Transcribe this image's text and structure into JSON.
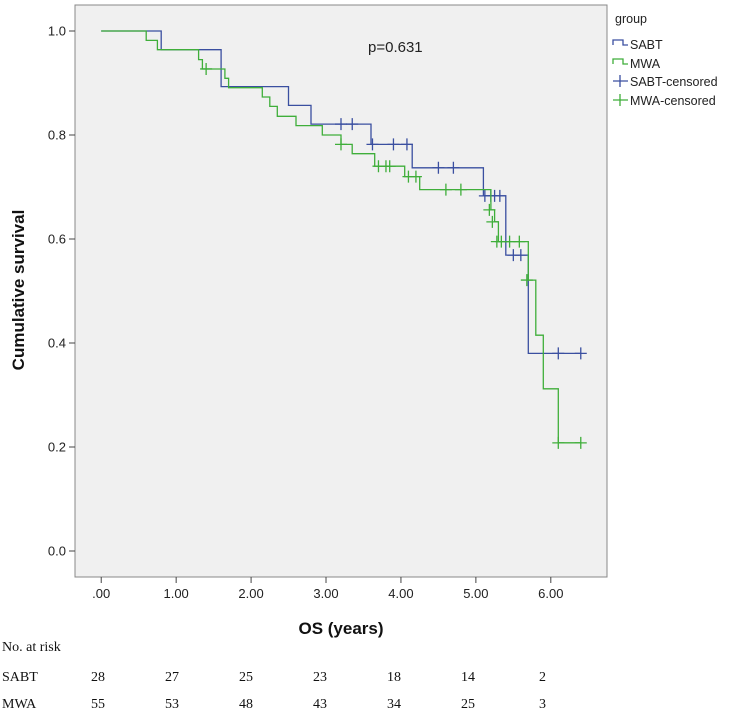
{
  "chart_data": {
    "type": "line",
    "subtype": "kaplan-meier",
    "xlabel": "OS (years)",
    "ylabel": "Cumulative survival",
    "xlim": [
      -0.35,
      6.75
    ],
    "ylim": [
      -0.05,
      1.05
    ],
    "x_ticks": [
      0,
      1,
      2,
      3,
      4,
      5,
      6
    ],
    "x_tick_labels": [
      ".00",
      "1.00",
      "2.00",
      "3.00",
      "4.00",
      "5.00",
      "6.00"
    ],
    "y_ticks": [
      0,
      0.2,
      0.4,
      0.6,
      0.8,
      1.0
    ],
    "y_tick_labels": [
      "0.0",
      "0.2",
      "0.4",
      "0.6",
      "0.8",
      "1.0"
    ],
    "annotation": "p=0.631",
    "legend": {
      "title": "group",
      "placement": "outside-right",
      "entries": [
        "SABT",
        "MWA",
        "SABT-censored",
        "MWA-censored"
      ]
    },
    "series": [
      {
        "name": "SABT",
        "color": "#3a4fa0",
        "steps": [
          [
            0,
            1.0
          ],
          [
            0.8,
            0.964
          ],
          [
            1.6,
            0.893
          ],
          [
            2.5,
            0.857
          ],
          [
            2.8,
            0.821
          ],
          [
            3.6,
            0.782
          ],
          [
            4.15,
            0.737
          ],
          [
            5.1,
            0.683
          ],
          [
            5.4,
            0.569
          ],
          [
            5.7,
            0.38
          ],
          [
            6.4,
            0.38
          ]
        ],
        "censored": [
          [
            3.2,
            0.821
          ],
          [
            3.35,
            0.821
          ],
          [
            3.62,
            0.782
          ],
          [
            3.9,
            0.782
          ],
          [
            4.08,
            0.782
          ],
          [
            4.5,
            0.737
          ],
          [
            4.7,
            0.737
          ],
          [
            5.12,
            0.683
          ],
          [
            5.2,
            0.683
          ],
          [
            5.25,
            0.683
          ],
          [
            5.32,
            0.683
          ],
          [
            5.5,
            0.569
          ],
          [
            5.6,
            0.569
          ],
          [
            6.1,
            0.38
          ],
          [
            6.4,
            0.38
          ]
        ]
      },
      {
        "name": "MWA",
        "color": "#3fae3a",
        "steps": [
          [
            0,
            1.0
          ],
          [
            0.6,
            0.982
          ],
          [
            0.75,
            0.964
          ],
          [
            1.3,
            0.945
          ],
          [
            1.35,
            0.927
          ],
          [
            1.65,
            0.909
          ],
          [
            1.7,
            0.891
          ],
          [
            2.15,
            0.873
          ],
          [
            2.25,
            0.855
          ],
          [
            2.35,
            0.836
          ],
          [
            2.6,
            0.818
          ],
          [
            2.95,
            0.8
          ],
          [
            3.2,
            0.782
          ],
          [
            3.35,
            0.764
          ],
          [
            3.65,
            0.74
          ],
          [
            4.05,
            0.72
          ],
          [
            4.25,
            0.695
          ],
          [
            5.2,
            0.656
          ],
          [
            5.25,
            0.633
          ],
          [
            5.3,
            0.595
          ],
          [
            5.7,
            0.521
          ],
          [
            5.8,
            0.415
          ],
          [
            5.9,
            0.312
          ],
          [
            6.1,
            0.208
          ],
          [
            6.4,
            0.208
          ]
        ],
        "censored": [
          [
            1.4,
            0.927
          ],
          [
            3.2,
            0.782
          ],
          [
            3.7,
            0.74
          ],
          [
            3.8,
            0.74
          ],
          [
            3.85,
            0.74
          ],
          [
            4.1,
            0.72
          ],
          [
            4.2,
            0.72
          ],
          [
            4.6,
            0.695
          ],
          [
            4.8,
            0.695
          ],
          [
            5.18,
            0.656
          ],
          [
            5.22,
            0.633
          ],
          [
            5.28,
            0.595
          ],
          [
            5.34,
            0.595
          ],
          [
            5.45,
            0.595
          ],
          [
            5.58,
            0.595
          ],
          [
            5.68,
            0.521
          ],
          [
            6.1,
            0.208
          ],
          [
            6.4,
            0.208
          ]
        ]
      }
    ]
  },
  "risk_table": {
    "title": "No. at risk",
    "rows": [
      {
        "label": "SABT",
        "values": [
          "28",
          "27",
          "25",
          "23",
          "18",
          "14",
          "2"
        ]
      },
      {
        "label": "MWA",
        "values": [
          "55",
          "53",
          "48",
          "43",
          "34",
          "25",
          "3"
        ]
      }
    ]
  }
}
